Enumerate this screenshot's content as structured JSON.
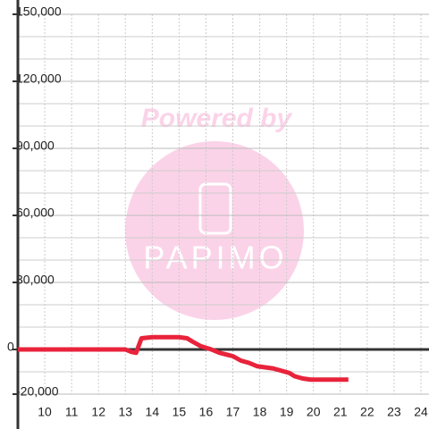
{
  "chart_data": {
    "type": "line",
    "watermark": [
      "Powered by",
      "PAPIMO"
    ],
    "x": [
      9,
      13,
      13.2,
      13.4,
      13.6,
      14,
      15,
      15.3,
      15.5,
      15.8,
      16.2,
      16.5,
      17,
      17.3,
      17.6,
      17.9,
      18.2,
      18.5,
      18.8,
      19.1,
      19.3,
      19.6,
      19.9,
      20.5,
      21.3
    ],
    "series": [
      {
        "color": "#e8233b",
        "values": [
          0,
          0,
          -1000,
          -1500,
          5000,
          5500,
          5500,
          5000,
          3500,
          1500,
          0,
          -1500,
          -3000,
          -5000,
          -6000,
          -7500,
          -8000,
          -8500,
          -9500,
          -10500,
          -12000,
          -13000,
          -13500,
          -13500,
          -13500
        ]
      }
    ],
    "xlim": [
      9,
      24.3
    ],
    "xticks": [
      10,
      11,
      12,
      13,
      14,
      15,
      16,
      17,
      18,
      19,
      20,
      21,
      22,
      23,
      24
    ],
    "ylim": [
      -20000,
      150000
    ],
    "yticks": [
      {
        "value": -20000,
        "label": "-20,000"
      },
      0,
      {
        "value": 30000,
        "label": "30,000"
      },
      {
        "value": 60000,
        "label": "60,000"
      },
      {
        "value": 90000,
        "label": "90,000"
      },
      {
        "value": 120000,
        "label": "120,000"
      },
      {
        "value": 150000,
        "label": "150,000"
      }
    ],
    "y_minor_ticks": [
      -10000,
      10000,
      20000,
      40000,
      50000,
      70000,
      80000,
      100000,
      110000,
      130000,
      140000
    ],
    "grid": true
  }
}
